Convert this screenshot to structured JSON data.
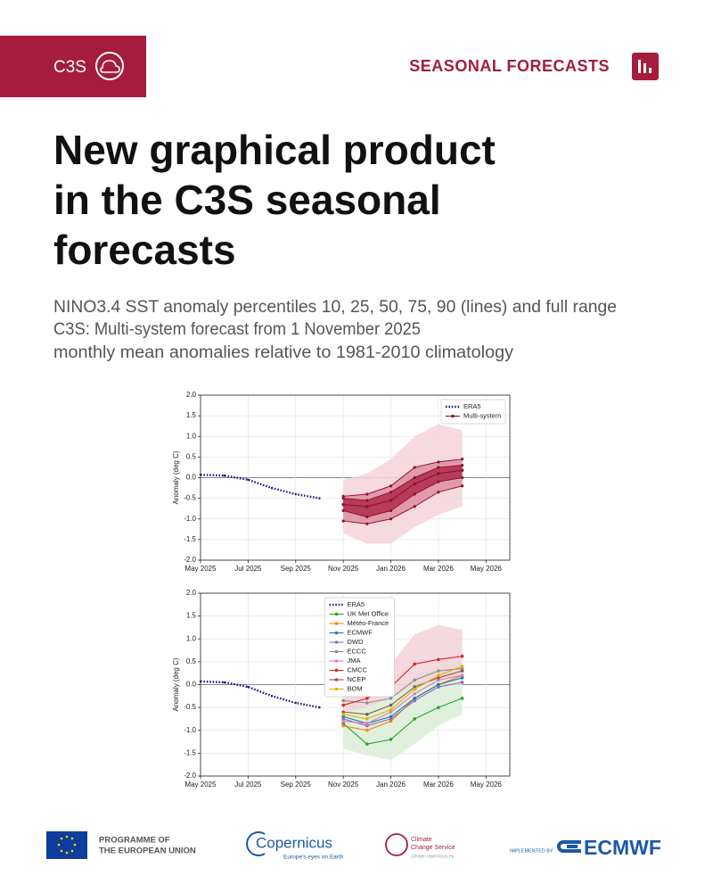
{
  "header": {
    "logo": "C3S",
    "section": "SEASONAL FORECASTS"
  },
  "title": [
    "New graphical product",
    "in the C3S seasonal",
    "forecasts"
  ],
  "subtitle": [
    "NINO3.4 SST anomaly percentiles 10, 25, 50, 75, 90 (lines) and full range",
    "C3S: Multi-system forecast from 1 November 2025",
    "monthly mean anomalies relative to 1981-2010 climatology"
  ],
  "chart_data": [
    {
      "type": "line",
      "ylabel": "Anomaly (deg C)",
      "legend": "upper right",
      "grid": true,
      "xlim": [
        "2025-05",
        "2026-06"
      ],
      "xticks": [
        {
          "value": "2025-05",
          "label": "May 2025"
        },
        {
          "value": "2025-07",
          "label": "Jul 2025"
        },
        {
          "value": "2025-09",
          "label": "Sep 2025"
        },
        {
          "value": "2025-11",
          "label": "Nov 2025"
        },
        {
          "value": "2026-01",
          "label": "Jan 2026"
        },
        {
          "value": "2026-03",
          "label": "Mar 2026"
        },
        {
          "value": "2026-05",
          "label": "May 2026"
        }
      ],
      "ylim": [
        -2,
        2
      ],
      "yticks": [
        {
          "value": -2,
          "label": "-2.0"
        },
        {
          "value": -1.5,
          "label": "-1.5"
        },
        {
          "value": -1,
          "label": "-1.0"
        },
        {
          "value": -0.5,
          "label": "-0.5"
        },
        {
          "value": 0,
          "label": "0.0"
        },
        {
          "value": 0.5,
          "label": "0.5"
        },
        {
          "value": 1,
          "label": "1.0"
        },
        {
          "value": 1.5,
          "label": "1.5"
        },
        {
          "value": 2,
          "label": "2.0"
        }
      ],
      "band_x": [
        "2025-11",
        "2025-12",
        "2026-01",
        "2026-02",
        "2026-03",
        "2026-04"
      ],
      "bands": [
        {
          "color": "#f6d3da",
          "lower": [
            -1.35,
            -1.6,
            -1.6,
            -1.2,
            -0.9,
            -0.7
          ],
          "upper": [
            -0.05,
            0.1,
            0.45,
            1.0,
            1.3,
            1.15
          ]
        },
        {
          "color": "#de8ea0",
          "lower": [
            -1.05,
            -1.12,
            -1.0,
            -0.7,
            -0.35,
            -0.2
          ],
          "upper": [
            -0.45,
            -0.4,
            -0.2,
            0.25,
            0.38,
            0.45
          ]
        },
        {
          "color": "#b22a4d",
          "lower": [
            -0.8,
            -0.95,
            -0.8,
            -0.4,
            -0.1,
            0.0
          ],
          "upper": [
            -0.5,
            -0.55,
            -0.35,
            0.0,
            0.25,
            0.3
          ]
        }
      ],
      "line_color": "#8e1232",
      "series": [
        {
          "name": "ERA5",
          "color": "#1c1c8c",
          "style": "dotted",
          "x": [
            "2025-05",
            "2025-06",
            "2025-07",
            "2025-08",
            "2025-09",
            "2025-10"
          ],
          "values": [
            0.07,
            0.05,
            -0.05,
            -0.25,
            -0.4,
            -0.5
          ]
        },
        {
          "name": "Multi-system",
          "color": "#8e1232",
          "x": [
            "2025-11",
            "2025-12",
            "2026-01",
            "2026-02",
            "2026-03",
            "2026-04"
          ],
          "values": [
            -0.65,
            -0.7,
            -0.55,
            -0.15,
            0.1,
            0.18
          ]
        }
      ]
    },
    {
      "type": "line",
      "ylabel": "Anomaly (deg C)",
      "legend": "upper center",
      "grid": true,
      "xlim": [
        "2025-05",
        "2026-06"
      ],
      "xticks": [
        {
          "value": "2025-05",
          "label": "May 2025"
        },
        {
          "value": "2025-07",
          "label": "Jul 2025"
        },
        {
          "value": "2025-09",
          "label": "Sep 2025"
        },
        {
          "value": "2025-11",
          "label": "Nov 2025"
        },
        {
          "value": "2026-01",
          "label": "Jan 2026"
        },
        {
          "value": "2026-03",
          "label": "Mar 2026"
        },
        {
          "value": "2026-05",
          "label": "May 2026"
        }
      ],
      "ylim": [
        -2,
        2
      ],
      "yticks": [
        {
          "value": -2,
          "label": "-2.0"
        },
        {
          "value": -1.5,
          "label": "-1.5"
        },
        {
          "value": -1,
          "label": "-1.0"
        },
        {
          "value": -0.5,
          "label": "-0.5"
        },
        {
          "value": 0,
          "label": "0.0"
        },
        {
          "value": 0.5,
          "label": "0.5"
        },
        {
          "value": 1,
          "label": "1.0"
        },
        {
          "value": 1.5,
          "label": "1.5"
        },
        {
          "value": 2,
          "label": "2.0"
        }
      ],
      "band_x": [
        "2025-11",
        "2025-12",
        "2026-01",
        "2026-02",
        "2026-03",
        "2026-04"
      ],
      "bands": [
        {
          "color": "#d9eed7",
          "lower": [
            -1.4,
            -1.55,
            -1.65,
            -1.3,
            -0.9,
            -0.65
          ],
          "upper": [
            -0.3,
            -0.5,
            -0.3,
            0.2,
            0.4,
            0.5
          ]
        },
        {
          "color": "#f3d2d8",
          "lower": [
            -0.6,
            -0.5,
            -0.3,
            0.0,
            0.1,
            0.2
          ],
          "upper": [
            -0.15,
            0.1,
            0.45,
            1.1,
            1.3,
            1.2
          ]
        }
      ],
      "series": [
        {
          "name": "ERA5",
          "color": "#1c1c8c",
          "style": "dotted",
          "x": [
            "2025-05",
            "2025-06",
            "2025-07",
            "2025-08",
            "2025-09",
            "2025-10"
          ],
          "values": [
            0.07,
            0.05,
            -0.05,
            -0.25,
            -0.4,
            -0.5
          ]
        },
        {
          "name": "UK Met Office",
          "color": "#2ca02c",
          "x": [
            "2025-11",
            "2025-12",
            "2026-01",
            "2026-02",
            "2026-03",
            "2026-04"
          ],
          "values": [
            -0.85,
            -1.3,
            -1.2,
            -0.75,
            -0.5,
            -0.3
          ]
        },
        {
          "name": "Météo-France",
          "color": "#ff7f0e",
          "x": [
            "2025-11",
            "2025-12",
            "2026-01",
            "2026-02",
            "2026-03",
            "2026-04"
          ],
          "values": [
            -0.9,
            -1.0,
            -0.8,
            -0.3,
            0.0,
            0.2
          ]
        },
        {
          "name": "ECMWF",
          "color": "#1f77b4",
          "x": [
            "2025-11",
            "2025-12",
            "2026-01",
            "2026-02",
            "2026-03",
            "2026-04"
          ],
          "values": [
            -0.7,
            -0.85,
            -0.7,
            -0.3,
            0.0,
            0.15
          ]
        },
        {
          "name": "DWD",
          "color": "#9467bd",
          "x": [
            "2025-11",
            "2025-12",
            "2026-01",
            "2026-02",
            "2026-03",
            "2026-04"
          ],
          "values": [
            -0.75,
            -0.9,
            -0.75,
            -0.35,
            -0.05,
            0.05
          ]
        },
        {
          "name": "ECCC",
          "color": "#8c8c8c",
          "x": [
            "2025-11",
            "2025-12",
            "2026-01",
            "2026-02",
            "2026-03",
            "2026-04"
          ],
          "values": [
            -0.35,
            -0.4,
            -0.3,
            0.1,
            0.3,
            0.35
          ]
        },
        {
          "name": "JMA",
          "color": "#e377c2",
          "x": [
            "2025-11",
            "2025-12",
            "2026-01",
            "2026-02",
            "2026-03",
            "2026-04"
          ],
          "values": [
            -0.8,
            -0.85,
            -0.6,
            -0.2,
            0.1,
            0.2
          ]
        },
        {
          "name": "CMCC",
          "color": "#d62728",
          "x": [
            "2025-11",
            "2025-12",
            "2026-01",
            "2026-02",
            "2026-03",
            "2026-04"
          ],
          "values": [
            -0.45,
            -0.3,
            -0.05,
            0.45,
            0.55,
            0.62
          ]
        },
        {
          "name": "NCEP",
          "color": "#8c564b",
          "x": [
            "2025-11",
            "2025-12",
            "2026-01",
            "2026-02",
            "2026-03",
            "2026-04"
          ],
          "values": [
            -0.6,
            -0.65,
            -0.45,
            -0.05,
            0.15,
            0.3
          ]
        },
        {
          "name": "BOM",
          "color": "#e0b000",
          "x": [
            "2025-11",
            "2025-12",
            "2026-01",
            "2026-02",
            "2026-03",
            "2026-04"
          ],
          "values": [
            -0.65,
            -0.75,
            -0.55,
            -0.1,
            0.2,
            0.4
          ]
        }
      ]
    }
  ],
  "footer": {
    "eu": [
      "PROGRAMME OF",
      "THE EUROPEAN UNION"
    ],
    "copernicus": "Copernicus",
    "copernicus_tagline": "Europe's eyes on Earth",
    "c3s": [
      "Climate",
      "Change Service"
    ],
    "c3s_url": "climate.copernicus.eu",
    "implemented_by": "IMPLEMENTED BY",
    "ecmwf": "ECMWF"
  }
}
